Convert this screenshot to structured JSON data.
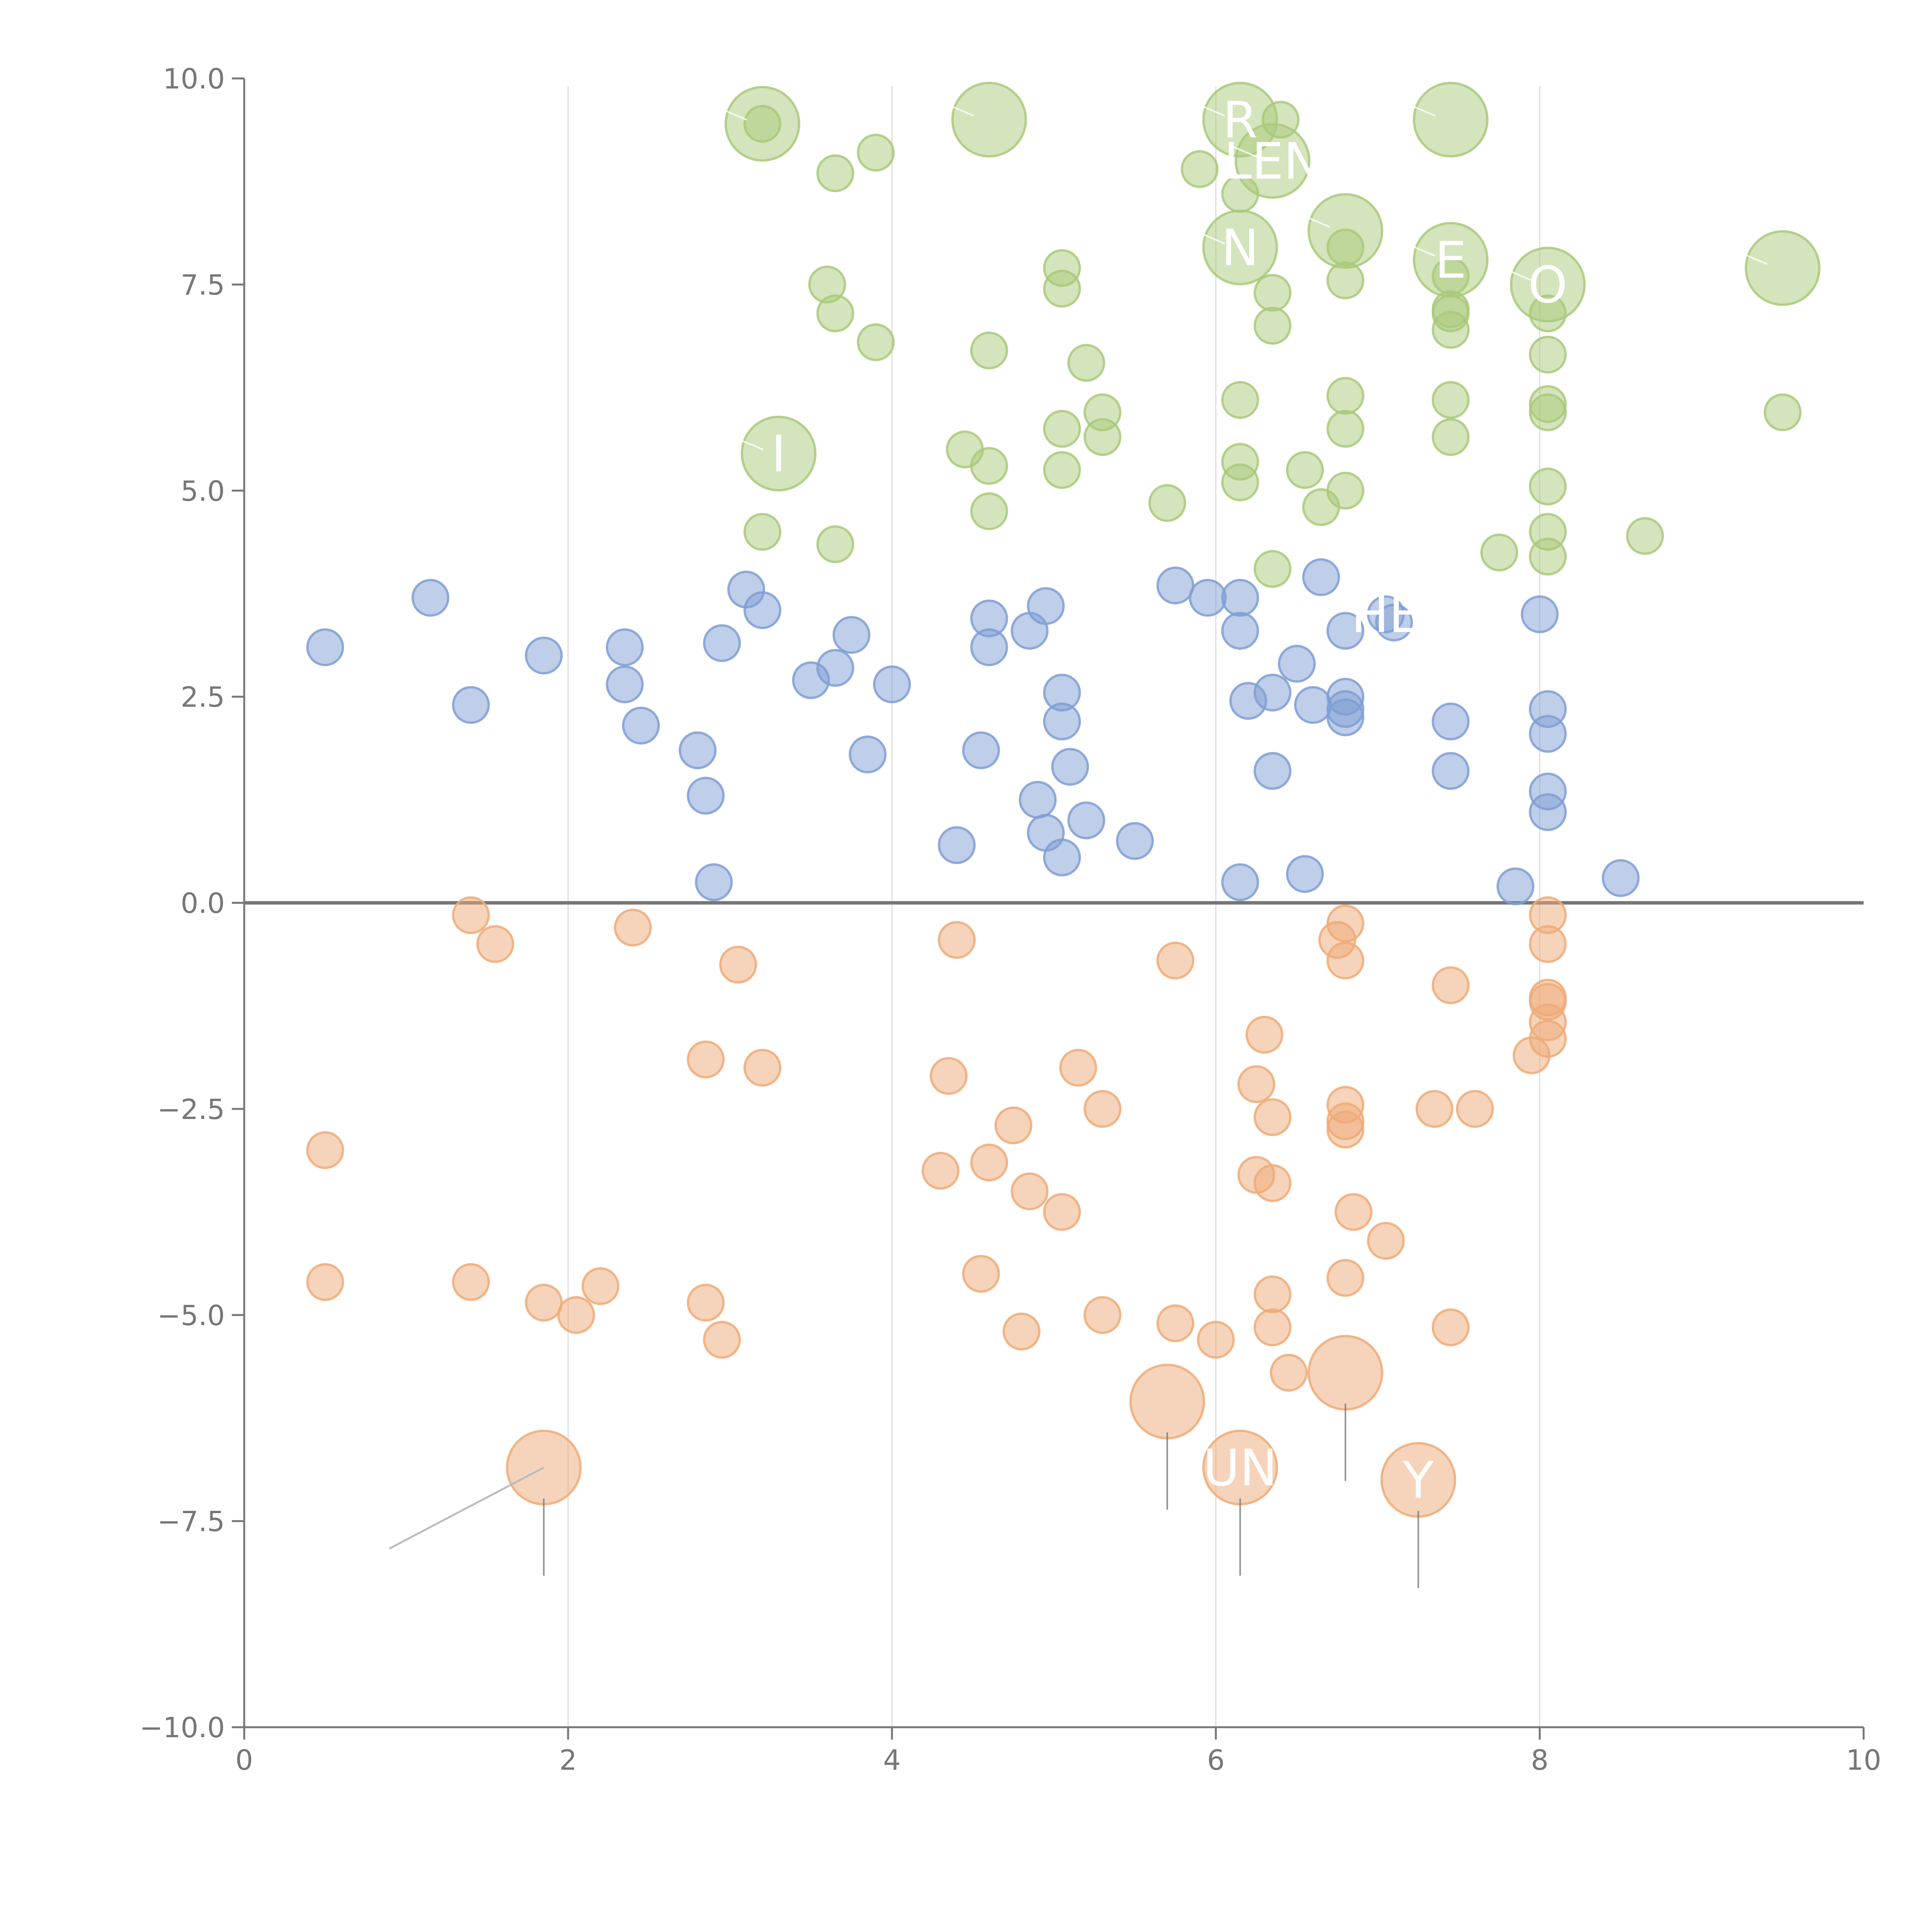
{
  "chart_data": {
    "type": "scatter",
    "title": "",
    "xlabel": "",
    "ylabel": "",
    "xlim": [
      0,
      10
    ],
    "ylim": [
      -10,
      10
    ],
    "grid": "vertical",
    "x_ticks": [
      "0",
      "2",
      "4",
      "6",
      "8",
      "10"
    ],
    "y_ticks": [
      "10.0",
      "7.5",
      "5.0",
      "2.5",
      "0.0",
      "−2.5",
      "−5.0",
      "−7.5",
      "−10.0"
    ],
    "colors": {
      "green": "#a9c97a",
      "blue": "#7f9ed4",
      "orange": "#eeaa77",
      "axis": "#777777",
      "grid": "#dddddd",
      "leader": "#bbbbbb"
    },
    "series": [
      {
        "name": "green",
        "points": [
          [
            3.2,
            9.45
          ],
          [
            3.65,
            8.85
          ],
          [
            3.9,
            9.1
          ],
          [
            3.6,
            7.5
          ],
          [
            3.65,
            7.15
          ],
          [
            3.9,
            6.8
          ],
          [
            4.6,
            6.7
          ],
          [
            4.45,
            5.5
          ],
          [
            4.6,
            5.3
          ],
          [
            4.6,
            4.75
          ],
          [
            3.2,
            4.5
          ],
          [
            3.65,
            4.35
          ],
          [
            5.05,
            7.7
          ],
          [
            5.05,
            7.45
          ],
          [
            5.2,
            6.55
          ],
          [
            5.3,
            5.95
          ],
          [
            5.05,
            5.75
          ],
          [
            5.3,
            5.65
          ],
          [
            5.05,
            5.25
          ],
          [
            5.7,
            4.85
          ],
          [
            5.9,
            8.9
          ],
          [
            6.15,
            8.6
          ],
          [
            6.4,
            9.5
          ],
          [
            6.35,
            7.4
          ],
          [
            6.35,
            7.0
          ],
          [
            6.15,
            6.1
          ],
          [
            6.15,
            5.35
          ],
          [
            6.15,
            5.1
          ],
          [
            6.55,
            5.25
          ],
          [
            6.65,
            4.8
          ],
          [
            6.35,
            4.05
          ],
          [
            6.8,
            7.95
          ],
          [
            6.8,
            7.55
          ],
          [
            6.8,
            6.15
          ],
          [
            6.8,
            5.75
          ],
          [
            6.8,
            5.0
          ],
          [
            7.45,
            7.6
          ],
          [
            7.45,
            7.2
          ],
          [
            7.45,
            7.15
          ],
          [
            7.45,
            6.95
          ],
          [
            7.45,
            6.1
          ],
          [
            7.45,
            5.65
          ],
          [
            7.75,
            4.25
          ],
          [
            8.05,
            7.15
          ],
          [
            8.05,
            6.65
          ],
          [
            8.05,
            6.05
          ],
          [
            8.05,
            5.95
          ],
          [
            8.05,
            5.05
          ],
          [
            8.05,
            4.5
          ],
          [
            8.05,
            4.2
          ],
          [
            8.65,
            4.45
          ],
          [
            9.5,
            5.95
          ]
        ],
        "bubbles": [
          {
            "x": 3.2,
            "y": 9.45,
            "label": ""
          },
          {
            "x": 4.6,
            "y": 9.5,
            "label": ""
          },
          {
            "x": 6.15,
            "y": 9.5,
            "label": "R"
          },
          {
            "x": 6.35,
            "y": 9.0,
            "label": "LEN"
          },
          {
            "x": 6.15,
            "y": 7.95,
            "label": "N"
          },
          {
            "x": 6.8,
            "y": 8.15,
            "label": ""
          },
          {
            "x": 7.45,
            "y": 9.5,
            "label": ""
          },
          {
            "x": 7.45,
            "y": 7.8,
            "label": "E"
          },
          {
            "x": 8.05,
            "y": 7.5,
            "label": "O"
          },
          {
            "x": 3.3,
            "y": 5.45,
            "label": "I"
          },
          {
            "x": 9.5,
            "y": 7.7,
            "label": ""
          }
        ]
      },
      {
        "name": "blue",
        "points": [
          [
            0.5,
            3.1
          ],
          [
            1.15,
            3.7
          ],
          [
            1.4,
            2.4
          ],
          [
            1.85,
            3.0
          ],
          [
            2.35,
            3.1
          ],
          [
            2.35,
            2.65
          ],
          [
            2.45,
            2.15
          ],
          [
            2.8,
            1.85
          ],
          [
            2.85,
            1.3
          ],
          [
            2.9,
            0.25
          ],
          [
            2.95,
            3.15
          ],
          [
            3.1,
            3.8
          ],
          [
            3.2,
            3.55
          ],
          [
            3.5,
            2.7
          ],
          [
            3.65,
            2.85
          ],
          [
            3.75,
            3.25
          ],
          [
            3.85,
            1.8
          ],
          [
            4.0,
            2.65
          ],
          [
            4.4,
            0.7
          ],
          [
            4.55,
            1.85
          ],
          [
            4.6,
            3.45
          ],
          [
            4.6,
            3.1
          ],
          [
            4.85,
            3.3
          ],
          [
            4.95,
            3.6
          ],
          [
            4.9,
            1.25
          ],
          [
            4.95,
            0.85
          ],
          [
            5.05,
            2.55
          ],
          [
            5.05,
            2.2
          ],
          [
            5.1,
            1.65
          ],
          [
            5.05,
            0.55
          ],
          [
            5.2,
            1.0
          ],
          [
            5.5,
            0.75
          ],
          [
            5.75,
            3.85
          ],
          [
            5.95,
            3.7
          ],
          [
            6.15,
            3.7
          ],
          [
            6.15,
            3.3
          ],
          [
            6.2,
            2.45
          ],
          [
            6.35,
            2.55
          ],
          [
            6.5,
            2.9
          ],
          [
            6.35,
            1.6
          ],
          [
            6.15,
            0.25
          ],
          [
            6.55,
            0.35
          ],
          [
            6.65,
            3.95
          ],
          [
            6.6,
            2.4
          ],
          [
            6.8,
            3.3
          ],
          [
            6.8,
            2.5
          ],
          [
            6.8,
            2.35
          ],
          [
            6.8,
            2.25
          ],
          [
            7.1,
            3.4
          ],
          [
            7.45,
            2.2
          ],
          [
            7.45,
            1.6
          ],
          [
            8.0,
            3.5
          ],
          [
            8.05,
            2.35
          ],
          [
            8.05,
            2.05
          ],
          [
            8.05,
            1.35
          ],
          [
            8.05,
            1.1
          ],
          [
            7.85,
            0.2
          ],
          [
            8.5,
            0.3
          ]
        ],
        "bubbles": [
          {
            "x": 7.05,
            "y": 3.5,
            "label": "HE"
          }
        ]
      },
      {
        "name": "orange",
        "points": [
          [
            1.4,
            -0.15
          ],
          [
            1.55,
            -0.5
          ],
          [
            2.4,
            -0.3
          ],
          [
            3.05,
            -0.75
          ],
          [
            2.85,
            -1.9
          ],
          [
            3.2,
            -2.0
          ],
          [
            0.5,
            -3.0
          ],
          [
            0.5,
            -4.6
          ],
          [
            1.4,
            -4.6
          ],
          [
            1.85,
            -4.85
          ],
          [
            2.05,
            -5.0
          ],
          [
            2.2,
            -4.65
          ],
          [
            2.85,
            -4.85
          ],
          [
            2.95,
            -5.3
          ],
          [
            4.4,
            -0.45
          ],
          [
            4.35,
            -2.1
          ],
          [
            4.3,
            -3.25
          ],
          [
            4.6,
            -3.15
          ],
          [
            4.75,
            -2.7
          ],
          [
            4.85,
            -3.5
          ],
          [
            5.05,
            -3.75
          ],
          [
            4.55,
            -4.5
          ],
          [
            4.8,
            -5.2
          ],
          [
            5.15,
            -2.0
          ],
          [
            5.3,
            -2.5
          ],
          [
            5.3,
            -5.0
          ],
          [
            5.75,
            -0.7
          ],
          [
            5.75,
            -5.1
          ],
          [
            6.0,
            -5.3
          ],
          [
            6.3,
            -1.6
          ],
          [
            6.25,
            -2.2
          ],
          [
            6.35,
            -2.6
          ],
          [
            6.25,
            -3.3
          ],
          [
            6.35,
            -3.4
          ],
          [
            6.35,
            -4.75
          ],
          [
            6.35,
            -5.15
          ],
          [
            6.45,
            -5.7
          ],
          [
            6.75,
            -0.45
          ],
          [
            6.8,
            -0.25
          ],
          [
            6.8,
            -0.7
          ],
          [
            6.8,
            -2.45
          ],
          [
            6.8,
            -2.65
          ],
          [
            6.8,
            -2.75
          ],
          [
            6.85,
            -3.75
          ],
          [
            7.05,
            -4.1
          ],
          [
            6.8,
            -4.55
          ],
          [
            7.45,
            -1.0
          ],
          [
            7.35,
            -2.5
          ],
          [
            7.6,
            -2.5
          ],
          [
            7.45,
            -5.15
          ],
          [
            8.05,
            -0.15
          ],
          [
            8.05,
            -0.5
          ],
          [
            8.05,
            -1.15
          ],
          [
            8.05,
            -1.2
          ],
          [
            8.05,
            -1.45
          ],
          [
            8.05,
            -1.65
          ],
          [
            7.95,
            -1.85
          ]
        ],
        "bubbles": [
          {
            "x": 1.85,
            "y": -6.85,
            "label": ""
          },
          {
            "x": 5.7,
            "y": -6.05,
            "label": ""
          },
          {
            "x": 6.15,
            "y": -6.85,
            "label": "UN"
          },
          {
            "x": 6.8,
            "y": -5.7,
            "label": ""
          },
          {
            "x": 7.25,
            "y": -7.0,
            "label": "Y"
          }
        ]
      }
    ]
  }
}
